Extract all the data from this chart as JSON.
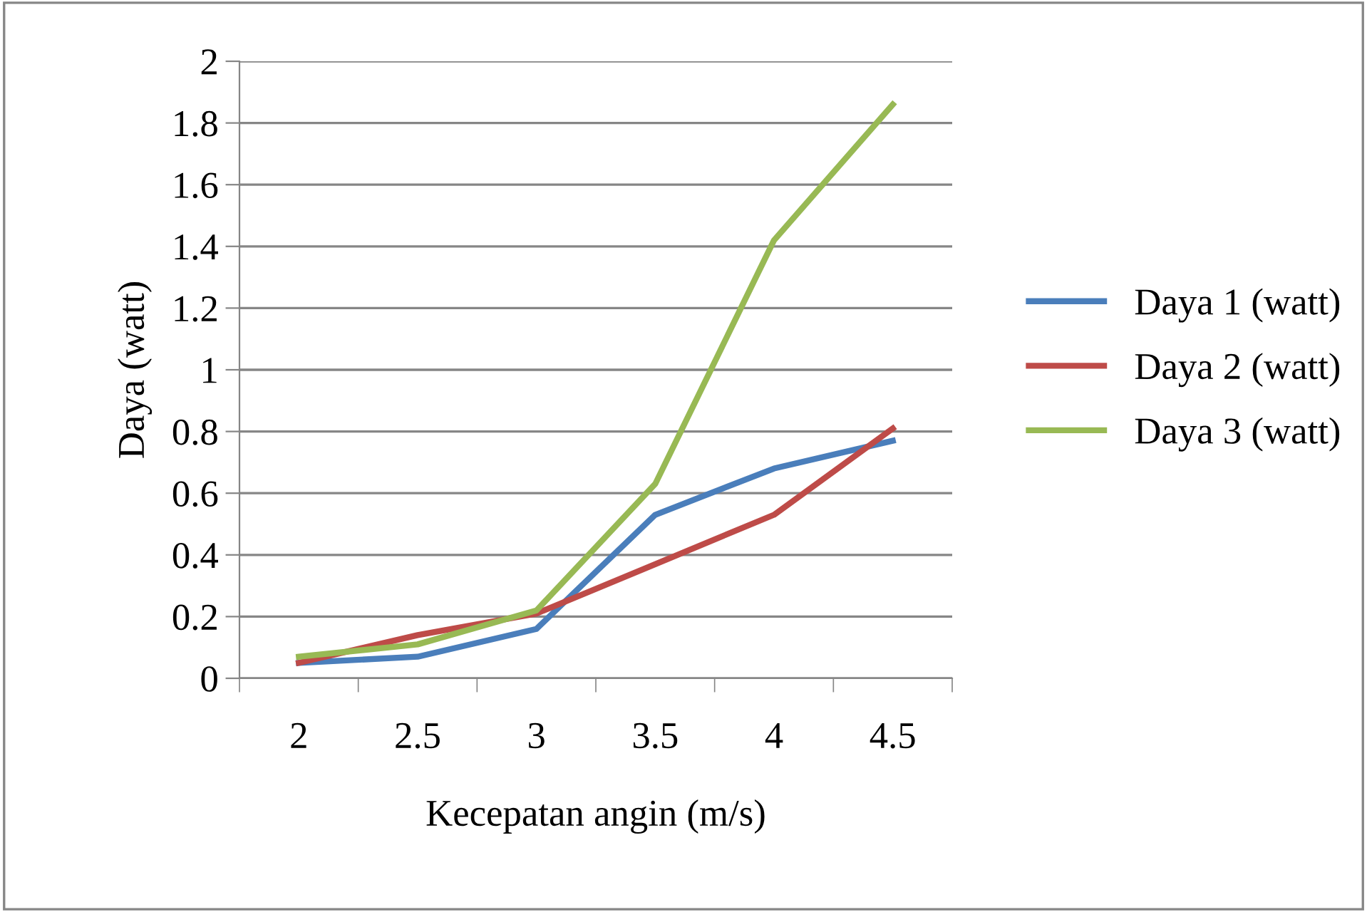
{
  "chart_data": {
    "type": "line",
    "xlabel": "Kecepatan angin (m/s)",
    "ylabel": "Daya (watt)",
    "categories": [
      "2",
      "2.5",
      "3",
      "3.5",
      "4",
      "4.5"
    ],
    "series": [
      {
        "name": "Daya 1 (watt)",
        "color": "#4a7ebb",
        "values": [
          0.05,
          0.07,
          0.16,
          0.53,
          0.68,
          0.77
        ]
      },
      {
        "name": "Daya 2 (watt)",
        "color": "#be4b48",
        "values": [
          0.05,
          0.14,
          0.21,
          0.37,
          0.53,
          0.81
        ]
      },
      {
        "name": "Daya 3 (watt)",
        "color": "#98b954",
        "values": [
          0.07,
          0.11,
          0.22,
          0.63,
          1.42,
          1.86
        ]
      }
    ],
    "ylim": [
      0,
      2
    ],
    "yticks": [
      0,
      0.2,
      0.4,
      0.6,
      0.8,
      1,
      1.2,
      1.4,
      1.6,
      1.8,
      2
    ],
    "grid": "y",
    "legend": "right",
    "marker": "none",
    "line_style": "solid"
  }
}
